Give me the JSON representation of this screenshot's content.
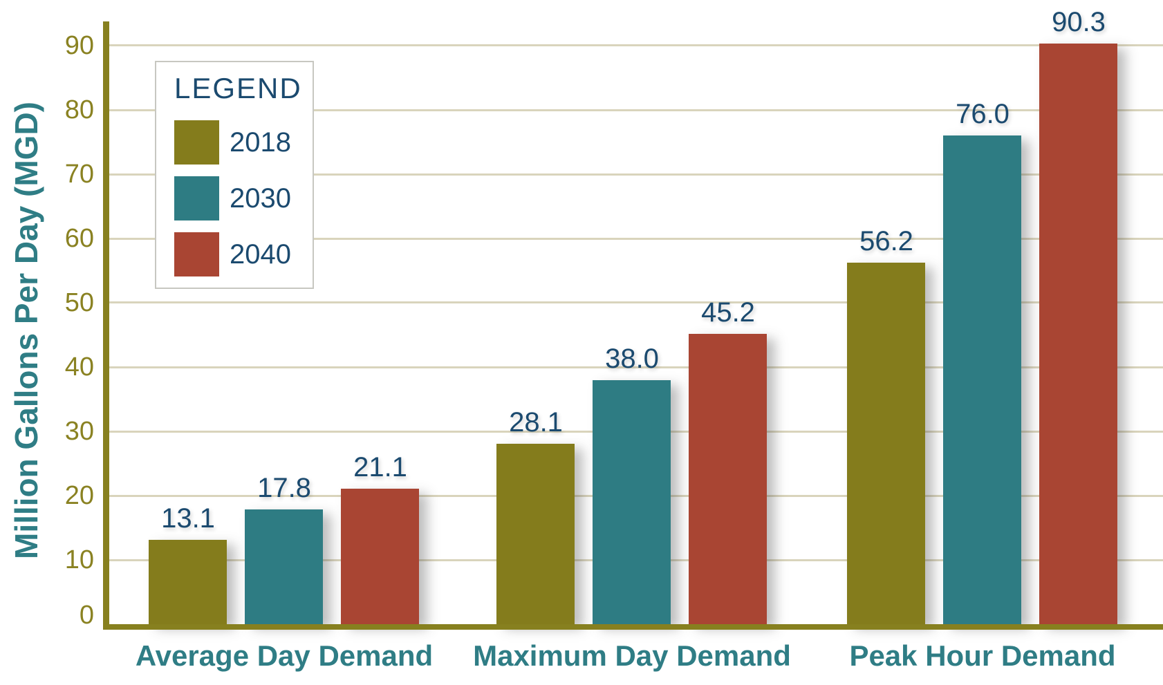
{
  "chart_data": {
    "type": "bar",
    "title": "",
    "xlabel": "",
    "ylabel": "Million Gallons Per Day (MGD)",
    "categories": [
      "Average Day Demand",
      "Maximum Day Demand",
      "Peak Hour Demand"
    ],
    "series": [
      {
        "name": "2018",
        "color": "#847C1C",
        "values": [
          13.1,
          28.1,
          56.2
        ]
      },
      {
        "name": "2030",
        "color": "#2E7C83",
        "values": [
          17.8,
          38.0,
          76.0
        ]
      },
      {
        "name": "2040",
        "color": "#A94533",
        "values": [
          21.1,
          45.2,
          90.3
        ]
      }
    ],
    "ylim": [
      0,
      93.5
    ],
    "yticks": [
      0,
      10,
      20,
      30,
      40,
      50,
      60,
      70,
      80,
      90
    ],
    "grid": true,
    "value_label_decimals": 1,
    "legend": {
      "title": "LEGEND",
      "position": "top-left",
      "entries": [
        "2018",
        "2030",
        "2040"
      ]
    }
  },
  "colors": {
    "background": "#FFFFFF",
    "axis_line": "#87801F",
    "tick_label": "#8A8222",
    "grid_line": "#D9D4BC",
    "value_label": "#1B4A6F",
    "category_label": "#2F7D85",
    "y_axis_title": "#2F7D85",
    "legend_title": "#1B4A6F",
    "legend_year_label": "#1B4A6F",
    "legend_border": "#C7C7C1"
  }
}
